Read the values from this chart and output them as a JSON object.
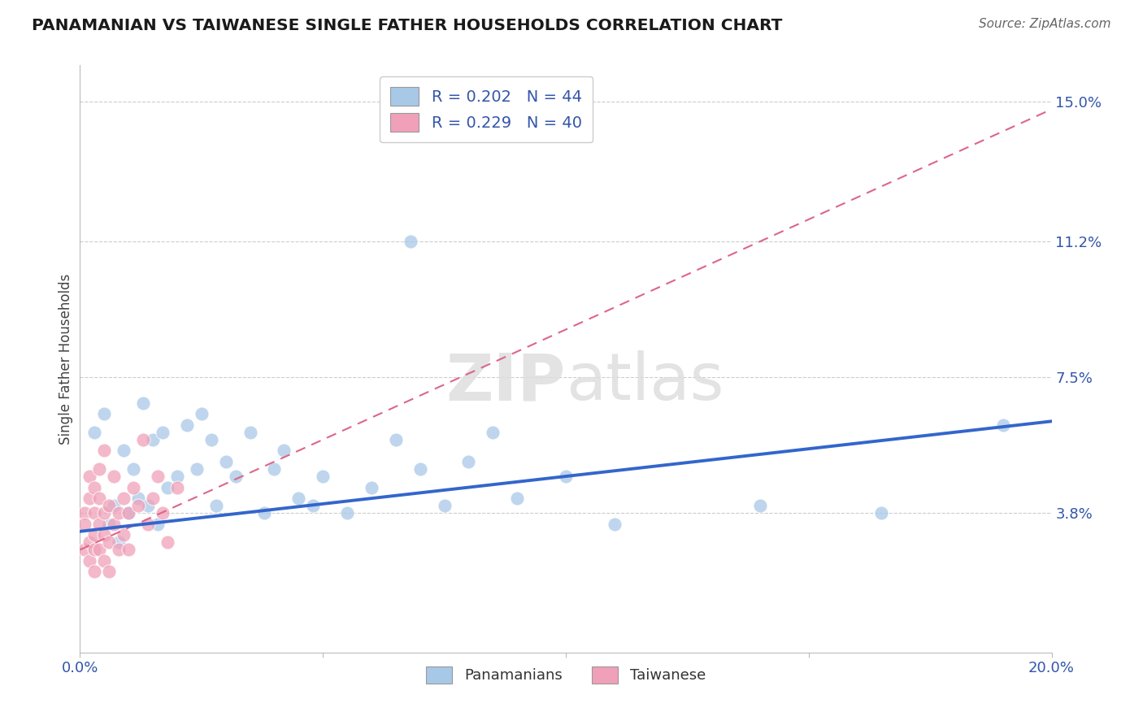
{
  "title": "PANAMANIAN VS TAIWANESE SINGLE FATHER HOUSEHOLDS CORRELATION CHART",
  "source": "Source: ZipAtlas.com",
  "ylabel": "Single Father Households",
  "xlim": [
    0.0,
    0.2
  ],
  "ylim": [
    0.0,
    0.16
  ],
  "ytick_positions": [
    0.038,
    0.075,
    0.112,
    0.15
  ],
  "ytick_labels": [
    "3.8%",
    "7.5%",
    "11.2%",
    "15.0%"
  ],
  "blue_R": 0.202,
  "blue_N": 44,
  "pink_R": 0.229,
  "pink_N": 40,
  "blue_color": "#a8c8e8",
  "pink_color": "#f0a0b8",
  "blue_line_color": "#3366cc",
  "pink_line_color": "#dd6688",
  "blue_line_x": [
    0.0,
    0.2
  ],
  "blue_line_y": [
    0.033,
    0.063
  ],
  "pink_line_x": [
    0.0,
    0.2
  ],
  "pink_line_y": [
    0.028,
    0.148
  ],
  "panamanian_x": [
    0.003,
    0.005,
    0.006,
    0.007,
    0.008,
    0.009,
    0.01,
    0.011,
    0.012,
    0.013,
    0.014,
    0.015,
    0.016,
    0.017,
    0.018,
    0.02,
    0.022,
    0.024,
    0.025,
    0.027,
    0.028,
    0.03,
    0.032,
    0.035,
    0.038,
    0.04,
    0.042,
    0.045,
    0.048,
    0.05,
    0.055,
    0.06,
    0.065,
    0.068,
    0.07,
    0.075,
    0.08,
    0.085,
    0.09,
    0.1,
    0.11,
    0.14,
    0.165,
    0.19
  ],
  "panamanian_y": [
    0.06,
    0.065,
    0.035,
    0.04,
    0.03,
    0.055,
    0.038,
    0.05,
    0.042,
    0.068,
    0.04,
    0.058,
    0.035,
    0.06,
    0.045,
    0.048,
    0.062,
    0.05,
    0.065,
    0.058,
    0.04,
    0.052,
    0.048,
    0.06,
    0.038,
    0.05,
    0.055,
    0.042,
    0.04,
    0.048,
    0.038,
    0.045,
    0.058,
    0.112,
    0.05,
    0.04,
    0.052,
    0.06,
    0.042,
    0.048,
    0.035,
    0.04,
    0.038,
    0.062
  ],
  "taiwanese_x": [
    0.001,
    0.001,
    0.001,
    0.002,
    0.002,
    0.002,
    0.002,
    0.003,
    0.003,
    0.003,
    0.003,
    0.003,
    0.004,
    0.004,
    0.004,
    0.004,
    0.005,
    0.005,
    0.005,
    0.005,
    0.006,
    0.006,
    0.006,
    0.007,
    0.007,
    0.008,
    0.008,
    0.009,
    0.009,
    0.01,
    0.01,
    0.011,
    0.012,
    0.013,
    0.014,
    0.015,
    0.016,
    0.017,
    0.018,
    0.02
  ],
  "taiwanese_y": [
    0.038,
    0.035,
    0.028,
    0.042,
    0.03,
    0.025,
    0.048,
    0.038,
    0.032,
    0.028,
    0.045,
    0.022,
    0.035,
    0.042,
    0.028,
    0.05,
    0.038,
    0.032,
    0.025,
    0.055,
    0.03,
    0.04,
    0.022,
    0.048,
    0.035,
    0.038,
    0.028,
    0.042,
    0.032,
    0.038,
    0.028,
    0.045,
    0.04,
    0.058,
    0.035,
    0.042,
    0.048,
    0.038,
    0.03,
    0.045
  ]
}
